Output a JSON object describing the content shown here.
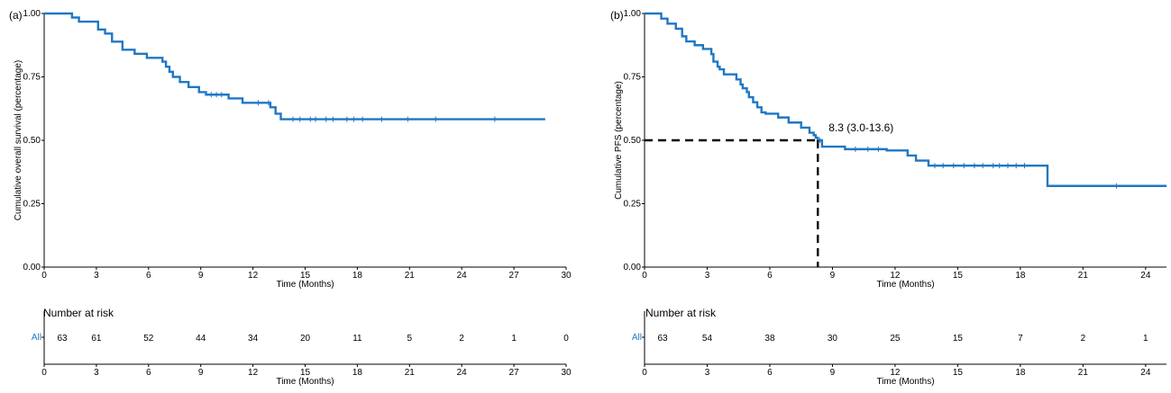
{
  "chart_data": [
    {
      "type": "line",
      "panel_label": "(a)",
      "xlabel": "Time (Months)",
      "ylabel": "Cumulative overall survival (percentage)",
      "xlim": [
        0,
        30
      ],
      "ylim": [
        0,
        1
      ],
      "xticks": [
        "0",
        "3",
        "6",
        "9",
        "12",
        "15",
        "18",
        "21",
        "24",
        "27",
        "30"
      ],
      "yticks": [
        "0.00",
        "0.25",
        "0.50",
        "0.75",
        "1.00"
      ],
      "grid": false,
      "color": "#1f77c4",
      "series": [
        {
          "x": [
            0,
            1.6,
            2.0,
            3.1,
            3.5,
            3.9,
            4.5,
            5.2,
            5.9,
            6.8,
            7.0,
            7.2,
            7.4,
            7.8,
            8.3,
            8.9,
            9.3,
            10.6,
            11.4,
            13.0,
            13.3,
            13.6,
            28.8
          ],
          "y": [
            1.0,
            0.984,
            0.968,
            0.937,
            0.921,
            0.889,
            0.857,
            0.841,
            0.825,
            0.81,
            0.79,
            0.77,
            0.75,
            0.73,
            0.71,
            0.69,
            0.68,
            0.665,
            0.648,
            0.63,
            0.605,
            0.583,
            0.583
          ]
        }
      ],
      "censor_x": [
        9.6,
        9.9,
        10.2,
        12.3,
        12.9,
        14.3,
        14.7,
        15.3,
        15.6,
        16.2,
        16.6,
        17.4,
        17.8,
        18.3,
        19.4,
        20.9,
        22.5,
        25.9
      ],
      "risk_table": {
        "title": "Number at risk",
        "group": "All",
        "times": [
          0,
          3,
          6,
          9,
          12,
          15,
          18,
          21,
          24,
          27,
          30
        ],
        "counts": [
          "63",
          "61",
          "52",
          "44",
          "34",
          "20",
          "11",
          "5",
          "2",
          "1",
          "0"
        ]
      }
    },
    {
      "type": "line",
      "panel_label": "(b)",
      "xlabel": "Time (Months)",
      "ylabel": "Cumulative PFS (percentage)",
      "xlim": [
        0,
        25
      ],
      "ylim": [
        0,
        1
      ],
      "xticks": [
        "0",
        "3",
        "6",
        "9",
        "12",
        "15",
        "18",
        "21",
        "24"
      ],
      "yticks": [
        "0.00",
        "0.25",
        "0.50",
        "0.75",
        "1.00"
      ],
      "grid": false,
      "color": "#1f77c4",
      "series": [
        {
          "x": [
            0,
            0.8,
            1.1,
            1.5,
            1.8,
            2.0,
            2.4,
            2.8,
            3.2,
            3.3,
            3.5,
            3.6,
            3.8,
            4.4,
            4.6,
            4.7,
            4.9,
            5.0,
            5.2,
            5.4,
            5.6,
            5.8,
            6.4,
            6.9,
            7.5,
            7.9,
            8.1,
            8.2,
            8.3,
            8.5,
            9.6,
            11.6,
            12.6,
            13.0,
            13.6,
            19.3,
            25
          ],
          "y": [
            1.0,
            0.98,
            0.96,
            0.94,
            0.91,
            0.89,
            0.875,
            0.86,
            0.84,
            0.81,
            0.79,
            0.78,
            0.76,
            0.74,
            0.72,
            0.705,
            0.69,
            0.67,
            0.65,
            0.63,
            0.61,
            0.605,
            0.59,
            0.57,
            0.55,
            0.53,
            0.52,
            0.51,
            0.5,
            0.475,
            0.465,
            0.46,
            0.44,
            0.42,
            0.4,
            0.32,
            0.32
          ]
        }
      ],
      "censor_x": [
        8.4,
        10.1,
        10.7,
        11.2,
        13.9,
        14.3,
        14.8,
        15.3,
        15.8,
        16.2,
        16.7,
        17.0,
        17.4,
        17.8,
        18.2,
        22.6
      ],
      "median": {
        "x": 8.3,
        "y": 0.5,
        "label": "8.3 (3.0-13.6)"
      },
      "risk_table": {
        "title": "Number at risk",
        "group": "All",
        "times": [
          0,
          3,
          6,
          9,
          12,
          15,
          18,
          21,
          24
        ],
        "counts": [
          "63",
          "54",
          "38",
          "30",
          "25",
          "15",
          "7",
          "2",
          "1"
        ]
      }
    }
  ]
}
